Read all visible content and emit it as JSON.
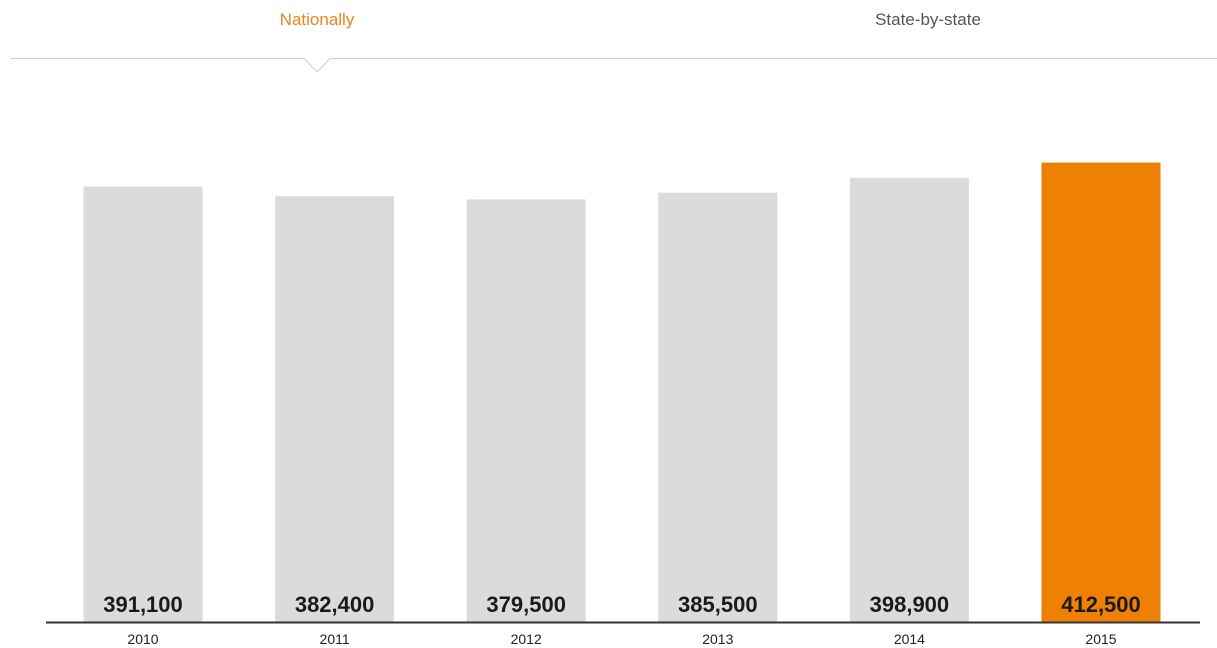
{
  "tabs": [
    {
      "label": "Nationally",
      "active": true
    },
    {
      "label": "State-by-state",
      "active": false
    }
  ],
  "colors": {
    "active_tab": "#f0821e",
    "inactive_tab": "#555555",
    "bar": "#dcdbda",
    "highlight_bar": "#ee8104",
    "baseline": "#333333",
    "label": "#1a1a1a"
  },
  "chart_data": {
    "type": "bar",
    "categories": [
      "2010",
      "2011",
      "2012",
      "2013",
      "2014",
      "2015"
    ],
    "values": [
      391100,
      382400,
      379500,
      385500,
      398900,
      412500
    ],
    "value_labels": [
      "391,100",
      "382,400",
      "379,500",
      "385,500",
      "398,900",
      "412,500"
    ],
    "highlight_category": "2015",
    "ylim": [
      0,
      450000
    ],
    "grid": false,
    "legend": "none"
  }
}
